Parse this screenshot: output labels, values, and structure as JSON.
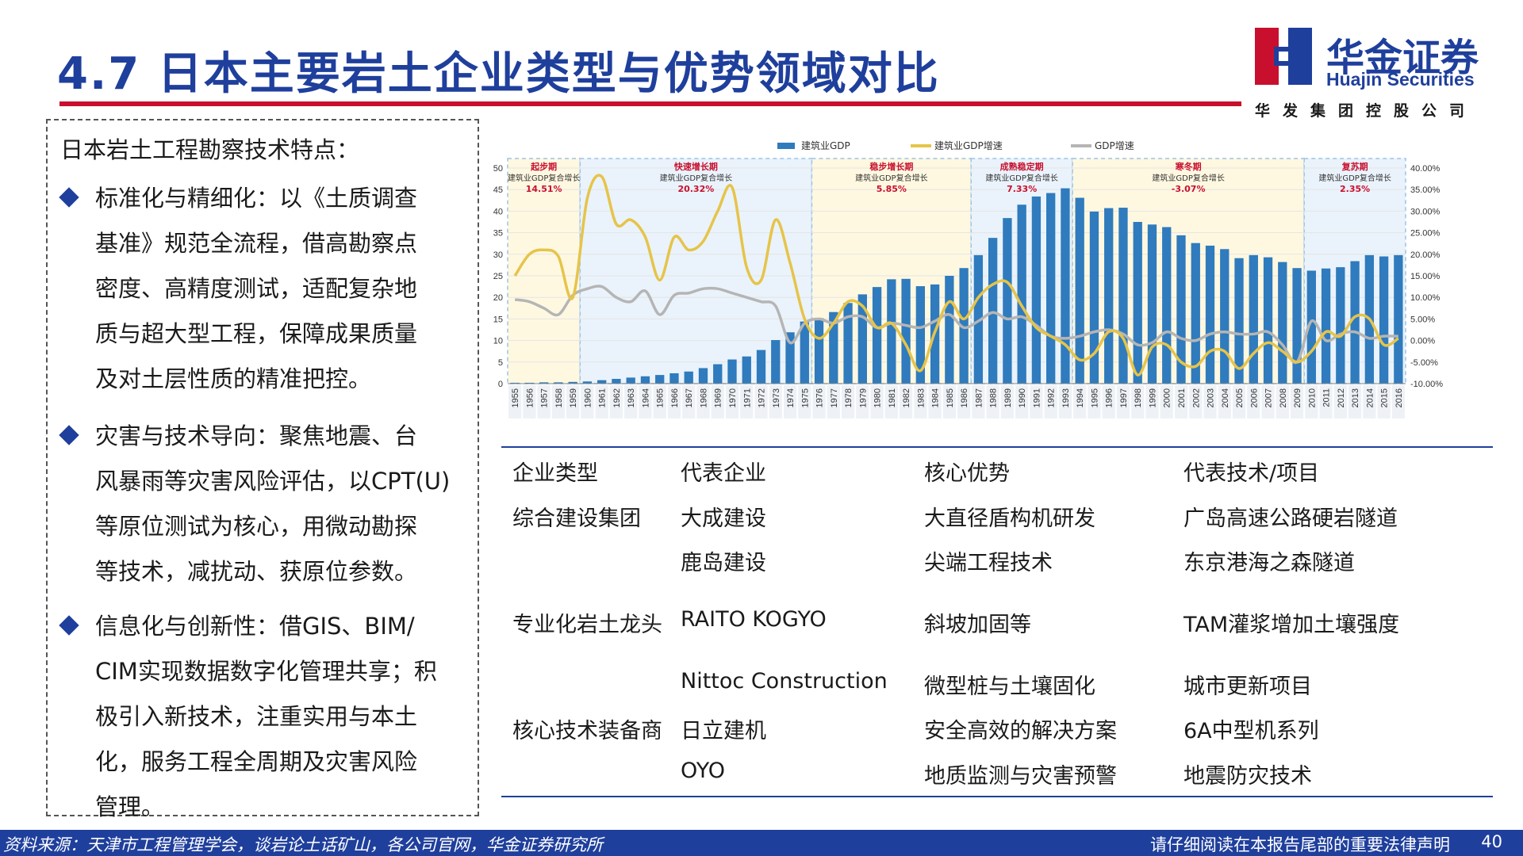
{
  "header": {
    "title": "4.7 日本主要岩土企业类型与优势领域对比"
  },
  "logo": {
    "cn": "华金证券",
    "en": "Huajin Securities",
    "sub": "华发集团控股公司"
  },
  "left_panel": {
    "heading": "日本岩土工程勘察技术特点：",
    "bullets": [
      {
        "lines": [
          "标准化与精细化：以《土质调查",
          "基准》规范全流程，借高勘察点",
          "密度、高精度测试，适配复杂地",
          "质与超大型工程，保障成果质量",
          "及对土层性质的精准把控。"
        ]
      },
      {
        "lines": [
          "灾害与技术导向：聚焦地震、台",
          "风暴雨等灾害风险评估，以CPT(U)",
          "等原位测试为核心，用微动勘探",
          "等技术，减扰动、获原位参数。"
        ]
      },
      {
        "lines": [
          "信息化与创新性：借GIS、BIM/",
          "CIM实现数据数字化管理共享；积",
          "极引入新技术，注重实用与本土",
          "化，服务工程全周期及灾害风险",
          "管理。"
        ]
      }
    ]
  },
  "table": {
    "headers": [
      "企业类型",
      "代表企业",
      "核心优势",
      "代表技术/项目"
    ],
    "rows": [
      [
        "综合建设集团",
        "大成建设",
        "大直径盾构机研发",
        "广岛高速公路硬岩隧道"
      ],
      [
        "",
        "鹿岛建设",
        "尖端工程技术",
        "东京港海之森隧道"
      ],
      [
        "专业化岩土龙头",
        "RAITO KOGYO",
        "斜坡加固等",
        "TAM灌浆增加土壤强度"
      ],
      [
        "",
        "Nittoc Construction",
        "微型桩与土壤固化",
        "城市更新项目"
      ],
      [
        "核心技术装备商",
        "日立建机",
        "安全高效的解决方案",
        "6A中型机系列"
      ],
      [
        "",
        "OYO",
        "地质监测与灾害预警",
        "地震防灾技术"
      ]
    ]
  },
  "footer": {
    "source": "资料来源：天津市工程管理学会，谈岩论土话矿山，各公司官网，华金证券研究所",
    "legal": "请仔细阅读在本报告尾部的重要法律声明",
    "page": "40"
  },
  "chart_data": {
    "type": "bar",
    "legend": {
      "placement": "top",
      "entries": [
        "建筑业GDP",
        "建筑业GDP增速",
        "GDP增速"
      ]
    },
    "colors": {
      "bar": "#2f7bbd",
      "construction_growth": "#e6c44a",
      "gdp_growth": "#b5b5b5"
    },
    "x": [
      1955,
      1956,
      1957,
      1958,
      1959,
      1960,
      1961,
      1962,
      1963,
      1964,
      1965,
      1966,
      1967,
      1968,
      1969,
      1970,
      1971,
      1972,
      1973,
      1974,
      1975,
      1976,
      1977,
      1978,
      1979,
      1980,
      1981,
      1982,
      1983,
      1984,
      1985,
      1986,
      1987,
      1988,
      1989,
      1990,
      1991,
      1992,
      1993,
      1994,
      1995,
      1996,
      1997,
      1998,
      1999,
      2000,
      2001,
      2002,
      2003,
      2004,
      2005,
      2006,
      2007,
      2008,
      2009,
      2010,
      2011,
      2012,
      2013,
      2014,
      2015,
      2016
    ],
    "series": [
      {
        "name": "建筑业GDP",
        "axis": "left",
        "kind": "bar",
        "values": [
          0.2,
          0.2,
          0.3,
          0.3,
          0.4,
          0.5,
          0.8,
          1.1,
          1.4,
          1.7,
          2.0,
          2.4,
          2.8,
          3.6,
          4.5,
          5.6,
          6.3,
          7.8,
          10.1,
          11.9,
          14.4,
          15.2,
          16.6,
          18.7,
          20.7,
          22.4,
          24.2,
          24.3,
          22.6,
          23.0,
          25.0,
          26.8,
          29.8,
          33.8,
          38.4,
          41.5,
          43.4,
          44.2,
          45.3,
          43.1,
          39.9,
          40.7,
          40.8,
          37.5,
          36.9,
          36.3,
          34.4,
          32.6,
          32.0,
          31.2,
          29.1,
          29.8,
          29.3,
          28.2,
          26.8,
          26.2,
          26.7,
          27.0,
          28.4,
          29.8,
          29.5,
          29.8
        ]
      },
      {
        "name": "建筑业GDP增速",
        "axis": "right",
        "kind": "line",
        "values": [
          15.0,
          20.0,
          21.0,
          19.5,
          10.0,
          33.0,
          38.0,
          27.0,
          28.0,
          24.0,
          14.0,
          24.0,
          21.0,
          23.0,
          30.0,
          35.5,
          17.0,
          14.0,
          28.0,
          18.0,
          5.0,
          0.5,
          4.0,
          9.0,
          8.0,
          3.0,
          4.0,
          -1.0,
          -7.0,
          2.0,
          9.0,
          5.0,
          10.0,
          13.0,
          13.5,
          8.0,
          3.0,
          1.0,
          -1.0,
          -4.5,
          -3.0,
          2.0,
          0.5,
          -8.0,
          -1.5,
          -1.0,
          -5.0,
          -6.0,
          -2.5,
          -2.5,
          -6.5,
          -3.0,
          -0.5,
          -2.5,
          -5.0,
          -2.5,
          2.0,
          1.0,
          5.5,
          5.0,
          -1.0,
          0.5
        ]
      },
      {
        "name": "GDP增速",
        "axis": "right",
        "kind": "line",
        "values": [
          9.5,
          9.0,
          7.5,
          6.0,
          10.5,
          12.0,
          12.5,
          10.0,
          9.0,
          11.5,
          6.0,
          10.5,
          11.0,
          12.0,
          12.0,
          11.0,
          10.0,
          9.0,
          8.0,
          -0.5,
          4.0,
          5.0,
          4.0,
          5.5,
          5.5,
          3.0,
          4.0,
          3.5,
          3.0,
          4.5,
          6.0,
          3.0,
          4.5,
          6.5,
          5.0,
          5.5,
          3.5,
          1.0,
          0.5,
          1.0,
          2.0,
          2.5,
          1.5,
          -1.0,
          -0.5,
          2.0,
          0.5,
          0.0,
          1.5,
          2.0,
          1.5,
          1.5,
          2.0,
          -1.0,
          -5.0,
          4.5,
          0.0,
          1.5,
          2.0,
          0.5,
          1.0,
          1.0
        ]
      }
    ],
    "y_left": {
      "min": 0,
      "max": 50,
      "ticks": [
        0,
        5,
        10,
        15,
        20,
        25,
        30,
        35,
        40,
        45,
        50
      ]
    },
    "y_right": {
      "min": -10,
      "max": 40,
      "ticks": [
        "-10.00%",
        "-5.00%",
        "0.00%",
        "5.00%",
        "10.00%",
        "15.00%",
        "20.00%",
        "25.00%",
        "30.00%",
        "35.00%",
        "40.00%"
      ]
    },
    "periods": [
      {
        "start": 1955,
        "end": 1959,
        "name": "起步期",
        "note": "建筑业GDP复合增长",
        "value": "14.51%"
      },
      {
        "start": 1960,
        "end": 1975,
        "name": "快速增长期",
        "note": "建筑业GDP复合增长",
        "value": "20.32%"
      },
      {
        "start": 1976,
        "end": 1986,
        "name": "稳步增长期",
        "note": "建筑业GDP复合增长",
        "value": "5.85%"
      },
      {
        "start": 1987,
        "end": 1993,
        "name": "成熟稳定期",
        "note": "建筑业GDP复合增长",
        "value": "7.33%"
      },
      {
        "start": 1994,
        "end": 2009,
        "name": "寒冬期",
        "note": "建筑业GDP复合增长",
        "value": "-3.07%"
      },
      {
        "start": 2010,
        "end": 2016,
        "name": "复苏期",
        "note": "建筑业GDP复合增长",
        "value": "2.35%"
      }
    ]
  }
}
